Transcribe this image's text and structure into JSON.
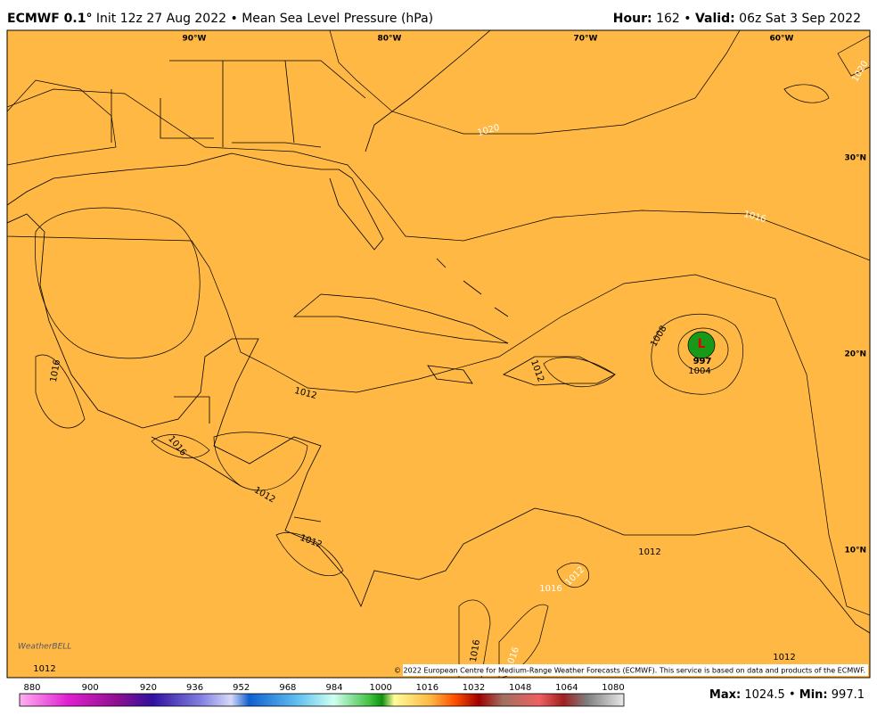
{
  "header": {
    "title_bold": "ECMWF 0.1°",
    "title_rest": "Init 12z 27 Aug 2022 • Mean Sea Level Pressure (hPa)",
    "hour_label": "Hour:",
    "hour": 162,
    "separator": "•",
    "valid_label": "Valid:",
    "valid": "06z Sat 3 Sep 2022"
  },
  "map": {
    "lon_labels": [
      "90°W",
      "80°W",
      "70°W",
      "60°W"
    ],
    "lat_labels": [
      "30°N",
      "20°N",
      "10°N"
    ],
    "contour_labels": [
      1020,
      1020,
      1016,
      1016,
      1012,
      1016,
      1012,
      1012,
      1008,
      1004,
      1012,
      1012,
      1016,
      1012,
      1016,
      1016,
      1012,
      1012
    ],
    "low_symbol": "L",
    "low_value": 997,
    "logo": "WeatherBELL",
    "copyright": "© 2022 European Centre for Medium-Range Weather Forecasts (ECMWF). This service is based on data and products of the ECMWF."
  },
  "colorbar": {
    "ticks": [
      880,
      900,
      920,
      936,
      952,
      968,
      984,
      1000,
      1016,
      1032,
      1048,
      1064,
      1080
    ]
  },
  "footer": {
    "max_label": "Max:",
    "max": 1024.5,
    "min_label": "Min:",
    "min": 997.1
  }
}
